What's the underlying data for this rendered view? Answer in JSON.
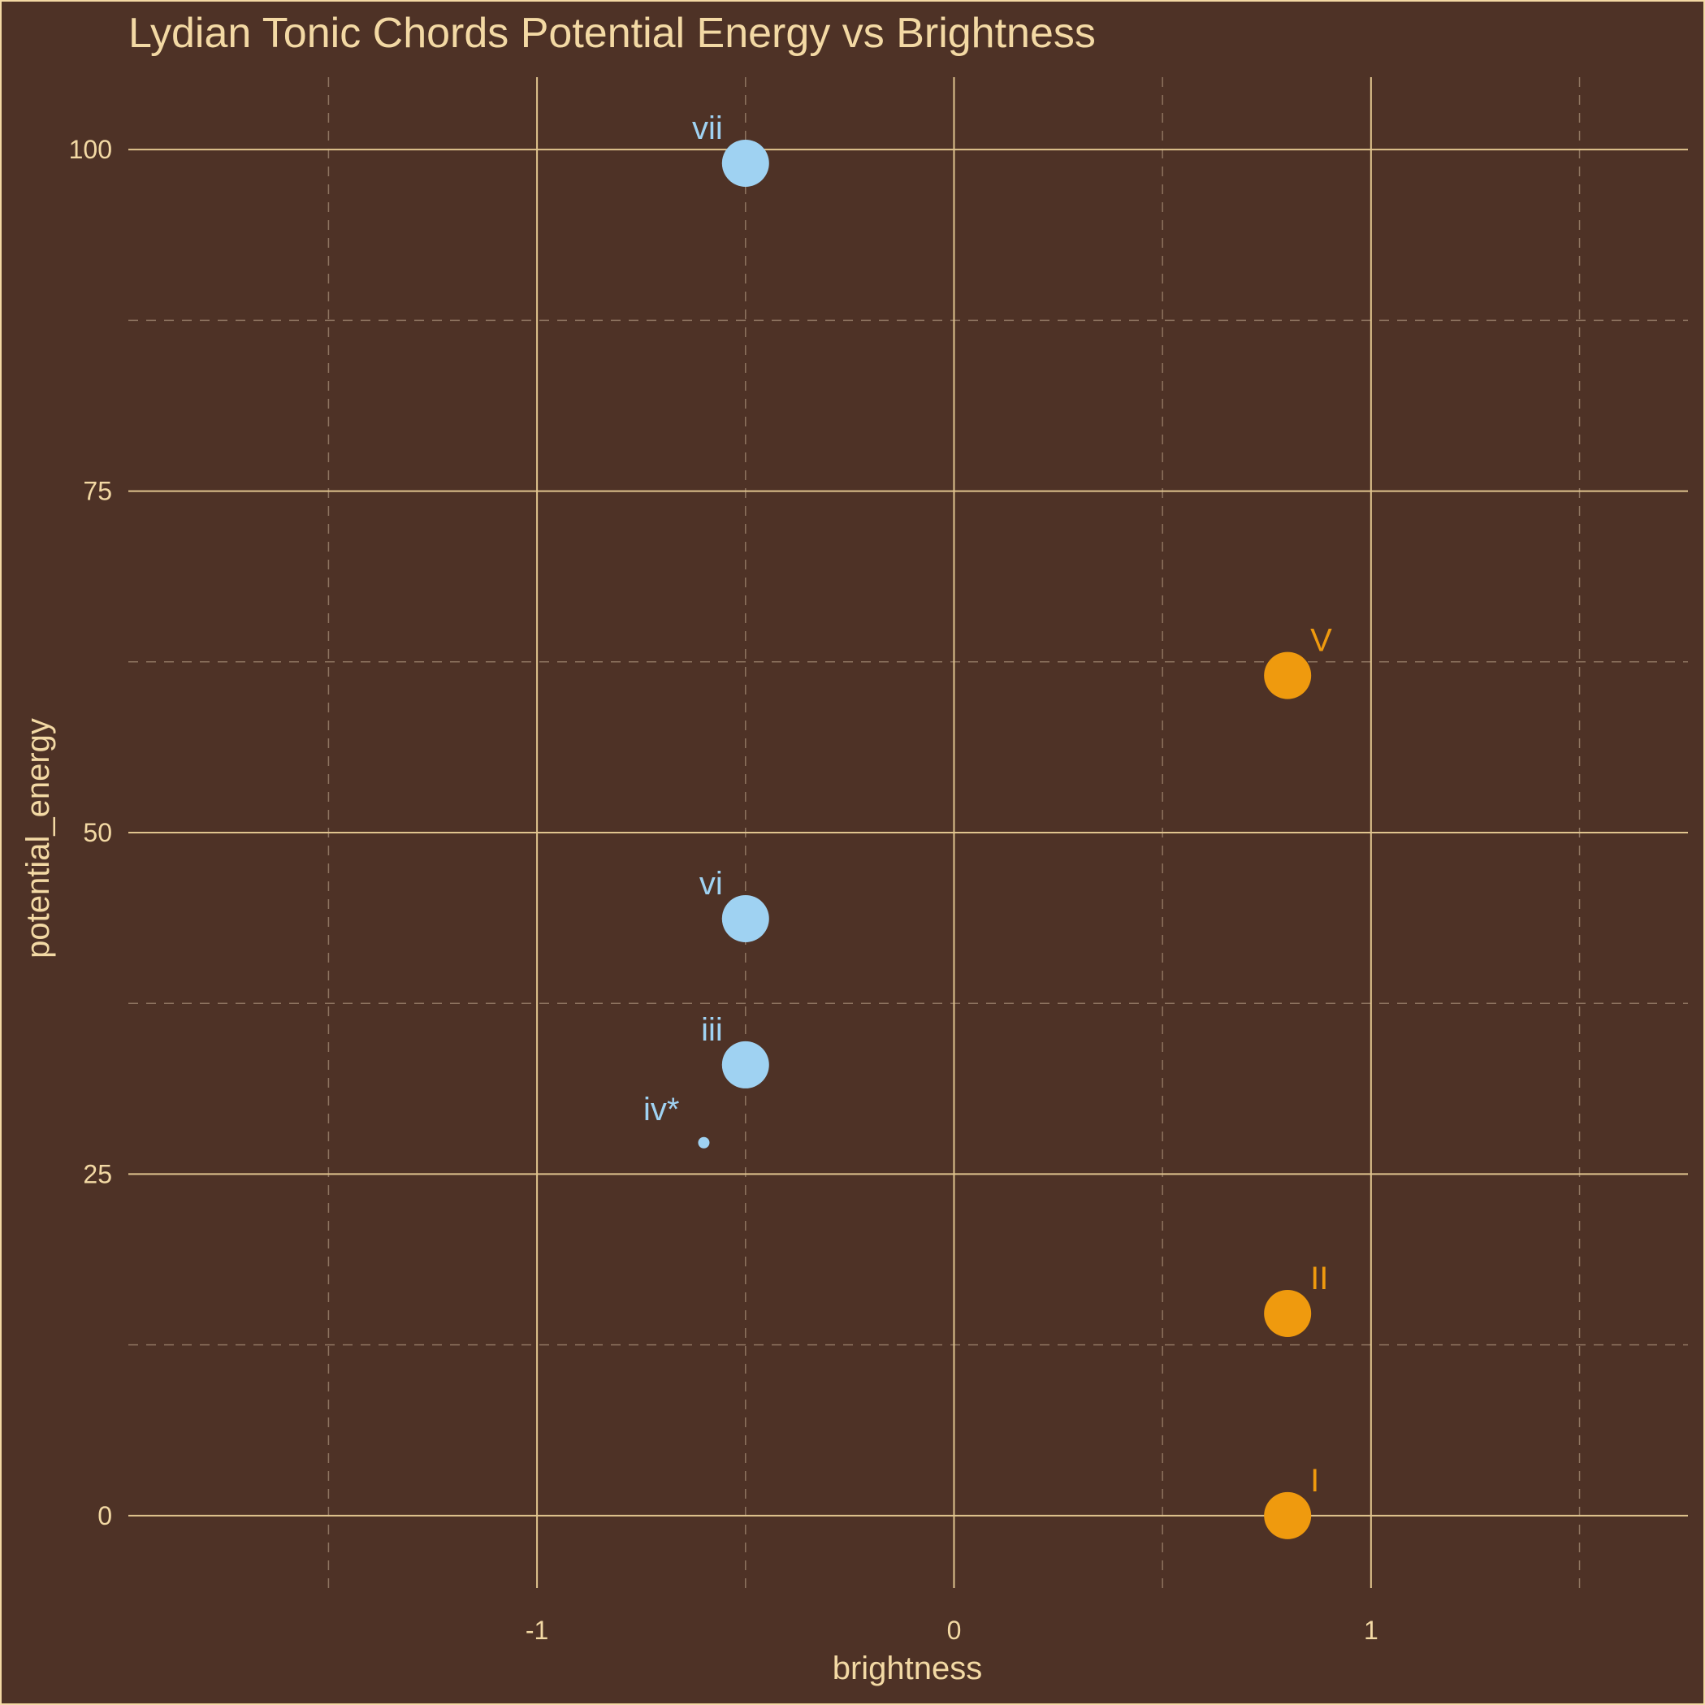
{
  "colors": {
    "background": "#4e3226",
    "frame": "#f3d9a4",
    "major_grid": "#e0c48e",
    "minor_grid": "#8e7460",
    "text": "#f3d9a4",
    "minor_series": "#9fd2f2",
    "major_series": "#ef9a0e"
  },
  "chart_data": {
    "type": "scatter",
    "title": "Lydian Tonic Chords Potential Energy vs Brightness",
    "xlabel": "brightness",
    "ylabel": "potential_energy",
    "xlim": [
      -1.98,
      1.76
    ],
    "ylim": [
      -5.3,
      105.3
    ],
    "x_ticks": [
      -1,
      0,
      1
    ],
    "x_tick_labels": [
      "-1",
      "0",
      "1"
    ],
    "y_ticks": [
      0,
      25,
      50,
      75,
      100
    ],
    "y_tick_labels": [
      "0",
      "25",
      "50",
      "75",
      "100"
    ],
    "x_minor": [
      -1.5,
      -0.5,
      0.5,
      1.5
    ],
    "y_minor": [
      12.5,
      37.5,
      62.5,
      87.5
    ],
    "grid": true,
    "legend": "none",
    "points": [
      {
        "label": "vii",
        "x": -0.5,
        "y": 99,
        "group": "minor",
        "size": "large"
      },
      {
        "label": "vi",
        "x": -0.5,
        "y": 43.7,
        "group": "minor",
        "size": "large"
      },
      {
        "label": "iii",
        "x": -0.5,
        "y": 33,
        "group": "minor",
        "size": "large"
      },
      {
        "label": "iv*",
        "x": -0.6,
        "y": 27.3,
        "group": "minor",
        "size": "small"
      },
      {
        "label": "V",
        "x": 0.8,
        "y": 61.5,
        "group": "major",
        "size": "large"
      },
      {
        "label": "II",
        "x": 0.8,
        "y": 14.8,
        "group": "major",
        "size": "large"
      },
      {
        "label": "I",
        "x": 0.8,
        "y": 0,
        "group": "major",
        "size": "large"
      }
    ]
  }
}
